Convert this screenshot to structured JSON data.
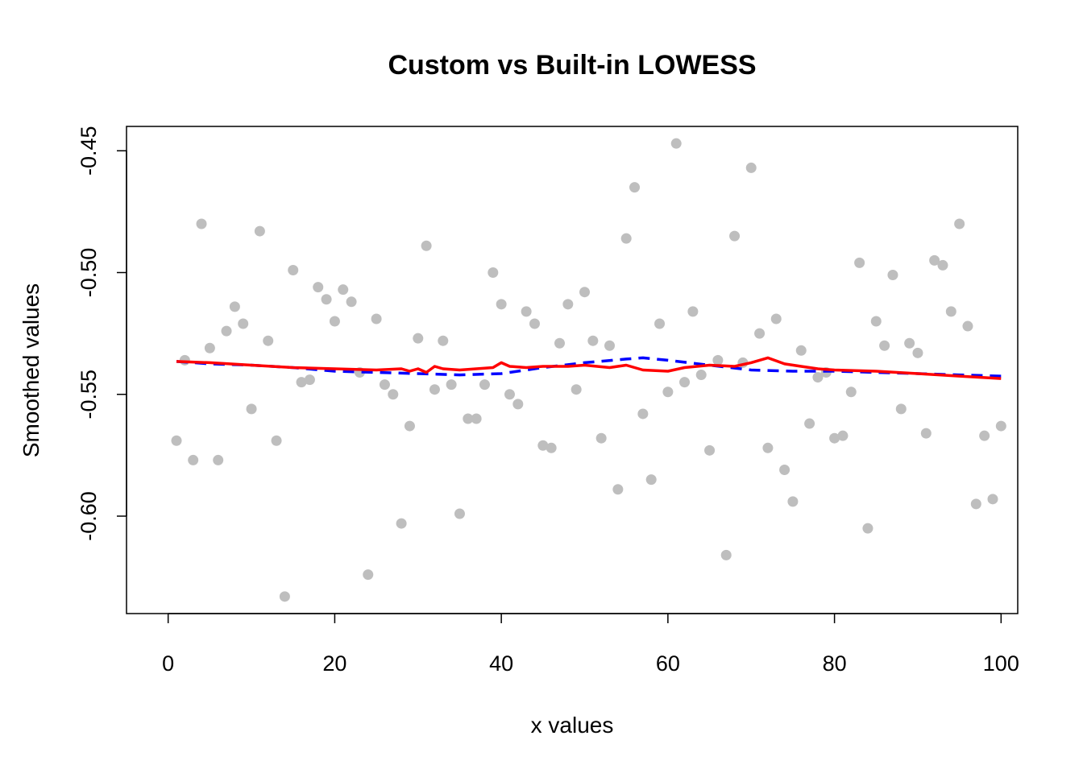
{
  "chart_data": {
    "type": "scatter",
    "title": "Custom vs Built-in LOWESS",
    "xlabel": "x values",
    "ylabel": "Smoothed values",
    "xlim": [
      -5,
      102
    ],
    "ylim": [
      -0.64,
      -0.44
    ],
    "x_ticks": [
      0,
      20,
      40,
      60,
      80,
      100
    ],
    "x_tick_labels": [
      "0",
      "20",
      "40",
      "60",
      "80",
      "100"
    ],
    "y_ticks": [
      -0.6,
      -0.55,
      -0.5,
      -0.45
    ],
    "y_tick_labels": [
      "-0.60",
      "-0.55",
      "-0.50",
      "-0.45"
    ],
    "grid": false,
    "legend": "none",
    "points_color": "#bebebe",
    "points": {
      "x": [
        1,
        2,
        3,
        4,
        5,
        6,
        7,
        8,
        9,
        10,
        11,
        12,
        13,
        14,
        15,
        16,
        17,
        18,
        19,
        20,
        21,
        22,
        23,
        24,
        25,
        26,
        27,
        28,
        29,
        30,
        31,
        32,
        33,
        34,
        35,
        36,
        37,
        38,
        39,
        40,
        41,
        42,
        43,
        44,
        45,
        46,
        47,
        48,
        49,
        50,
        51,
        52,
        53,
        54,
        55,
        56,
        57,
        58,
        59,
        60,
        61,
        62,
        63,
        64,
        65,
        66,
        67,
        68,
        69,
        70,
        71,
        72,
        73,
        74,
        75,
        76,
        77,
        78,
        79,
        80,
        81,
        82,
        83,
        84,
        85,
        86,
        87,
        88,
        89,
        90,
        91,
        92,
        93,
        94,
        95,
        96,
        97,
        98,
        99,
        100
      ],
      "y": [
        -0.569,
        -0.536,
        -0.577,
        -0.48,
        -0.531,
        -0.577,
        -0.524,
        -0.514,
        -0.521,
        -0.556,
        -0.483,
        -0.528,
        -0.569,
        -0.633,
        -0.499,
        -0.545,
        -0.544,
        -0.506,
        -0.511,
        -0.52,
        -0.507,
        -0.512,
        -0.541,
        -0.624,
        -0.519,
        -0.546,
        -0.55,
        -0.603,
        -0.563,
        -0.527,
        -0.489,
        -0.548,
        -0.528,
        -0.546,
        -0.599,
        -0.56,
        -0.56,
        -0.546,
        -0.5,
        -0.513,
        -0.55,
        -0.554,
        -0.516,
        -0.521,
        -0.571,
        -0.572,
        -0.529,
        -0.513,
        -0.548,
        -0.508,
        -0.528,
        -0.568,
        -0.53,
        -0.589,
        -0.486,
        -0.465,
        -0.558,
        -0.585,
        -0.521,
        -0.549,
        -0.447,
        -0.545,
        -0.516,
        -0.542,
        -0.573,
        -0.536,
        -0.616,
        -0.485,
        -0.537,
        -0.457,
        -0.525,
        -0.572,
        -0.519,
        -0.581,
        -0.594,
        -0.532,
        -0.562,
        -0.543,
        -0.541,
        -0.568,
        -0.567,
        -0.549,
        -0.496,
        -0.605,
        -0.52,
        -0.53,
        -0.501,
        -0.556,
        -0.529,
        -0.533,
        -0.566,
        -0.495,
        -0.497,
        -0.516,
        -0.48,
        -0.522,
        -0.595,
        -0.567,
        -0.593,
        -0.563
      ]
    },
    "series": [
      {
        "color": "#0000ff",
        "style": "dashed",
        "x": [
          1,
          5,
          10,
          15,
          20,
          25,
          30,
          35,
          40,
          45,
          50,
          55,
          57,
          60,
          65,
          70,
          75,
          80,
          85,
          90,
          95,
          100
        ],
        "y": [
          -0.5365,
          -0.5375,
          -0.538,
          -0.539,
          -0.5405,
          -0.541,
          -0.5415,
          -0.542,
          -0.5415,
          -0.539,
          -0.537,
          -0.5355,
          -0.535,
          -0.536,
          -0.538,
          -0.54,
          -0.5405,
          -0.5405,
          -0.541,
          -0.5415,
          -0.542,
          -0.5425
        ]
      },
      {
        "color": "#ff0000",
        "style": "solid",
        "x": [
          1,
          5,
          10,
          15,
          20,
          25,
          28,
          29,
          30,
          31,
          32,
          33,
          35,
          37,
          39,
          40,
          41,
          43,
          45,
          48,
          50,
          53,
          55,
          57,
          60,
          62,
          65,
          68,
          70,
          72,
          74,
          76,
          78,
          80,
          85,
          90,
          95,
          100
        ],
        "y": [
          -0.5365,
          -0.537,
          -0.538,
          -0.539,
          -0.5395,
          -0.54,
          -0.5395,
          -0.5405,
          -0.5395,
          -0.541,
          -0.5385,
          -0.5395,
          -0.54,
          -0.5395,
          -0.539,
          -0.537,
          -0.5385,
          -0.539,
          -0.5385,
          -0.5385,
          -0.538,
          -0.539,
          -0.538,
          -0.54,
          -0.5405,
          -0.539,
          -0.538,
          -0.5385,
          -0.537,
          -0.535,
          -0.5375,
          -0.5385,
          -0.5395,
          -0.54,
          -0.5405,
          -0.5415,
          -0.5425,
          -0.5435
        ]
      }
    ]
  }
}
